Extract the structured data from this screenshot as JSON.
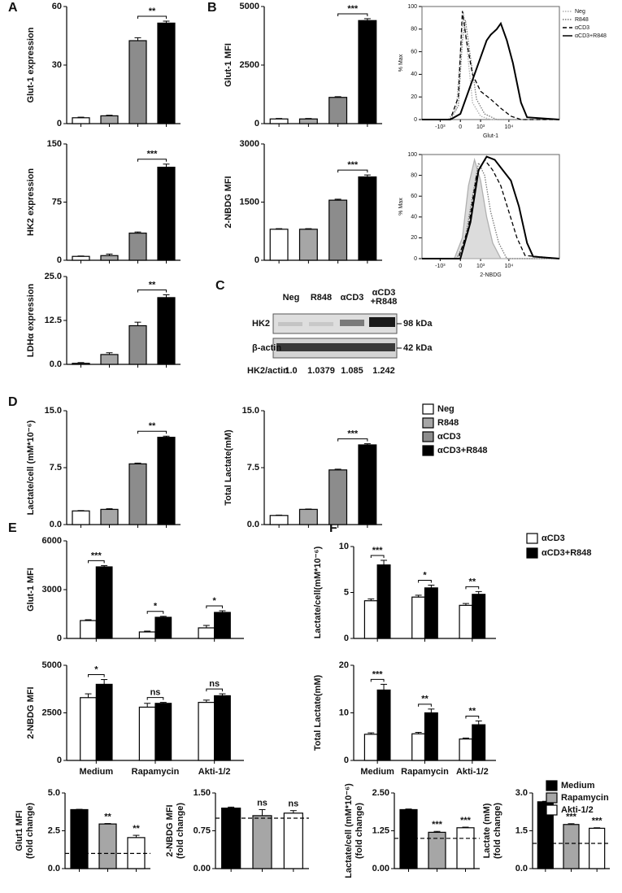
{
  "panel_labels": [
    "A",
    "B",
    "C",
    "D",
    "E",
    "F"
  ],
  "blot": {
    "lanes": [
      [
        "Neg"
      ],
      [
        "R848"
      ],
      [
        "αCD3"
      ],
      [
        "αCD3",
        "+R848"
      ]
    ],
    "rows": [
      {
        "label": "HK2",
        "size": "98 kDa"
      },
      {
        "label": "β-actin",
        "size": "42 kDa"
      }
    ],
    "ratio_label": "HK2/actin",
    "ratios": [
      "1.0",
      "1.0379",
      "1.085",
      "1.242"
    ]
  },
  "chart_data": [
    {
      "type": "bar",
      "ylabel": "Glut-1 expression",
      "categories": [
        null,
        null,
        null,
        null
      ],
      "values": [
        3,
        4,
        42.5,
        51.5
      ],
      "errors": [
        0.3,
        0.3,
        1.5,
        1
      ],
      "bar_colors": [
        "#ffffff",
        "#a6a6a6",
        "#8c8c8c",
        "#000000"
      ],
      "ylim": [
        0,
        60
      ],
      "yticks": [
        0,
        30,
        60
      ],
      "significance": {
        "label": "**",
        "bars": [
          2,
          3
        ]
      }
    },
    {
      "type": "bar",
      "ylabel": "HK2 expression",
      "categories": [
        null,
        null,
        null,
        null
      ],
      "values": [
        5,
        6,
        35,
        120
      ],
      "errors": [
        0.5,
        2,
        1.5,
        4
      ],
      "bar_colors": [
        "#ffffff",
        "#a6a6a6",
        "#8c8c8c",
        "#000000"
      ],
      "ylim": [
        0,
        150
      ],
      "yticks": [
        0,
        75,
        150
      ],
      "significance": {
        "label": "***",
        "bars": [
          2,
          3
        ]
      }
    },
    {
      "type": "bar",
      "ylabel": "LDHα expression",
      "categories": [
        null,
        null,
        null,
        null
      ],
      "values": [
        0.3,
        2.8,
        11,
        19
      ],
      "errors": [
        0.2,
        0.5,
        1,
        0.8
      ],
      "bar_colors": [
        "#ffffff",
        "#a6a6a6",
        "#8c8c8c",
        "#000000"
      ],
      "ylim": [
        0,
        25
      ],
      "yticks": [
        {
          "value": 0,
          "label": "0.0"
        },
        12.5,
        {
          "value": 25,
          "label": "25.0"
        }
      ],
      "significance": {
        "label": "**",
        "bars": [
          2,
          3
        ]
      }
    },
    {
      "type": "bar",
      "ylabel": "Glut-1 MFI",
      "categories": [
        null,
        null,
        null,
        null
      ],
      "values": [
        200,
        200,
        1120,
        4400
      ],
      "errors": [
        20,
        20,
        30,
        80
      ],
      "bar_colors": [
        "#ffffff",
        "#a6a6a6",
        "#8c8c8c",
        "#000000"
      ],
      "ylim": [
        0,
        5000
      ],
      "yticks": [
        0,
        2500,
        5000
      ],
      "significance": {
        "label": "***",
        "bars": [
          2,
          3
        ]
      }
    },
    {
      "type": "bar",
      "ylabel": "2-NBDG MFI",
      "categories": [
        null,
        null,
        null,
        null
      ],
      "values": [
        800,
        800,
        1550,
        2150
      ],
      "errors": [
        15,
        15,
        25,
        50
      ],
      "bar_colors": [
        "#ffffff",
        "#a6a6a6",
        "#8c8c8c",
        "#000000"
      ],
      "ylim": [
        0,
        3000
      ],
      "yticks": [
        0,
        1500,
        3000
      ],
      "significance": {
        "label": "***",
        "bars": [
          2,
          3
        ]
      }
    },
    {
      "type": "line",
      "xlabel": "Glut-1",
      "ylabel": "% Max",
      "xlim": [
        -1.9,
        4.9
      ],
      "ylim": [
        0,
        100
      ],
      "yticks": [
        0,
        20,
        40,
        60,
        80,
        100
      ],
      "xticks": [
        {
          "value": -1,
          "label": "-10³"
        },
        0,
        {
          "value": 1,
          "label": "10³"
        },
        {
          "value": 2.4,
          "label": "10⁴"
        }
      ],
      "legend": "top-right",
      "series": [
        {
          "name": "Neg",
          "color": "#b0b0b0",
          "style": "dotted",
          "x": [
            -1.9,
            -0.6,
            -0.2,
            0,
            0.15,
            0.35,
            0.6,
            1,
            1.5,
            4.9
          ],
          "y": [
            0,
            0,
            10,
            60,
            95,
            60,
            15,
            3,
            0,
            0
          ]
        },
        {
          "name": "R848",
          "color": "#777777",
          "style": "dotted",
          "x": [
            -1.9,
            -0.5,
            -0.1,
            0.1,
            0.25,
            0.5,
            0.8,
            1.2,
            1.8,
            4.9
          ],
          "y": [
            0,
            0,
            12,
            70,
            88,
            55,
            18,
            5,
            0,
            0
          ]
        },
        {
          "name": "αCD3",
          "color": "#000000",
          "style": "dashed",
          "x": [
            -1.9,
            -0.5,
            -0.1,
            0.1,
            0.3,
            0.6,
            1,
            1.5,
            2,
            2.5,
            3,
            4.9
          ],
          "y": [
            0,
            0,
            20,
            96,
            70,
            40,
            25,
            18,
            10,
            3,
            0,
            0
          ]
        },
        {
          "name": "αCD3+R848",
          "color": "#000000",
          "style": "solid",
          "x": [
            -1.9,
            -0.5,
            0,
            0.5,
            1,
            1.3,
            1.5,
            1.8,
            2,
            2.3,
            2.6,
            3,
            3.3,
            4.9
          ],
          "y": [
            0,
            0,
            5,
            30,
            55,
            70,
            75,
            80,
            85,
            70,
            50,
            15,
            2,
            0
          ]
        }
      ]
    },
    {
      "type": "line",
      "xlabel": "2-NBDG",
      "ylabel": "% Max",
      "xlim": [
        -1.9,
        4.9
      ],
      "ylim": [
        0,
        100
      ],
      "yticks": [
        0,
        20,
        40,
        60,
        80,
        100
      ],
      "xticks": [
        {
          "value": -1,
          "label": "-10³"
        },
        0,
        {
          "value": 1,
          "label": "10³"
        },
        {
          "value": 2.4,
          "label": "10⁴"
        }
      ],
      "series": [
        {
          "color": "#b0b0b0",
          "fill": "#dcdcdc",
          "style": "solid",
          "x": [
            -1.9,
            -0.3,
            0.1,
            0.4,
            0.7,
            1,
            1.3,
            1.6,
            2,
            4.9
          ],
          "y": [
            0,
            0,
            20,
            70,
            95,
            75,
            40,
            15,
            0,
            0
          ]
        },
        {
          "color": "#777777",
          "style": "dotted",
          "x": [
            -1.9,
            -0.2,
            0.2,
            0.6,
            0.9,
            1.2,
            1.5,
            1.9,
            2.3,
            4.9
          ],
          "y": [
            0,
            0,
            15,
            60,
            92,
            80,
            45,
            15,
            0,
            0
          ]
        },
        {
          "color": "#000000",
          "style": "dashed",
          "x": [
            -1.9,
            -0.1,
            0.4,
            0.8,
            1.2,
            1.6,
            2,
            2.4,
            2.8,
            3.2,
            4.9
          ],
          "y": [
            0,
            0,
            30,
            80,
            95,
            85,
            70,
            45,
            20,
            3,
            0
          ]
        },
        {
          "color": "#000000",
          "style": "solid",
          "x": [
            -1.9,
            0,
            0.5,
            0.9,
            1.3,
            1.7,
            2.1,
            2.5,
            2.9,
            3.3,
            3.6,
            4.9
          ],
          "y": [
            0,
            0,
            35,
            85,
            98,
            95,
            85,
            75,
            50,
            15,
            2,
            0
          ]
        }
      ]
    },
    {
      "type": "bar",
      "ylabel": "Lactate/cell (mM*10⁻⁶)",
      "categories": [
        null,
        null,
        null,
        null
      ],
      "values": [
        1.8,
        2.0,
        8.0,
        11.5
      ],
      "errors": [
        0.05,
        0.1,
        0.1,
        0.15
      ],
      "bar_colors": [
        "#ffffff",
        "#a6a6a6",
        "#8c8c8c",
        "#000000"
      ],
      "ylim": [
        0,
        15
      ],
      "yticks": [
        {
          "value": 0,
          "label": "0.0"
        },
        7.5,
        {
          "value": 15,
          "label": "15.0"
        }
      ],
      "significance": {
        "label": "**",
        "bars": [
          2,
          3
        ]
      }
    },
    {
      "type": "bar",
      "ylabel": "Total Lactate(mM)",
      "categories": [
        null,
        null,
        null,
        null
      ],
      "values": [
        1.2,
        2.0,
        7.2,
        10.5
      ],
      "errors": [
        0.05,
        0.05,
        0.1,
        0.15
      ],
      "bar_colors": [
        "#ffffff",
        "#a6a6a6",
        "#8c8c8c",
        "#000000"
      ],
      "ylim": [
        0,
        15
      ],
      "yticks": [
        {
          "value": 0,
          "label": "0.0"
        },
        7.5,
        {
          "value": 15,
          "label": "15.0"
        }
      ],
      "significance": {
        "label": "***",
        "bars": [
          2,
          3
        ]
      },
      "legend": {
        "position": "right",
        "entries": [
          {
            "name": "Neg",
            "color": "#ffffff"
          },
          {
            "name": "R848",
            "color": "#a6a6a6"
          },
          {
            "name": "αCD3",
            "color": "#8c8c8c"
          },
          {
            "name": "αCD3+R848",
            "color": "#000000"
          }
        ]
      }
    },
    {
      "type": "grouped_bar",
      "ylabel": "Glut-1 MFI",
      "categories": [
        null,
        null,
        null
      ],
      "ylim": [
        0,
        6000
      ],
      "yticks": [
        0,
        3000,
        6000
      ],
      "significance": [
        "***",
        "*",
        "*"
      ],
      "series": [
        {
          "color": "#ffffff",
          "values": [
            1100,
            400,
            650
          ],
          "errors": [
            50,
            50,
            150
          ]
        },
        {
          "color": "#000000",
          "values": [
            4400,
            1300,
            1600
          ],
          "errors": [
            80,
            60,
            100
          ]
        }
      ]
    },
    {
      "type": "grouped_bar",
      "ylabel": "2-NBDG MFI",
      "categories": [
        "Medium",
        "Rapamycin",
        "Akti-1/2"
      ],
      "ylim": [
        0,
        5000
      ],
      "yticks": [
        0,
        2500,
        5000
      ],
      "significance": [
        "*",
        "ns",
        "ns"
      ],
      "series": [
        {
          "color": "#ffffff",
          "values": [
            3300,
            2800,
            3050
          ],
          "errors": [
            200,
            200,
            120
          ]
        },
        {
          "color": "#000000",
          "values": [
            4000,
            3000,
            3400
          ],
          "errors": [
            250,
            50,
            100
          ]
        }
      ]
    },
    {
      "type": "grouped_bar",
      "ylabel": "Lactate/cell(mM*10⁻⁶)",
      "categories": [
        null,
        null,
        null
      ],
      "ylim": [
        0,
        10
      ],
      "yticks": [
        0,
        5,
        10
      ],
      "significance": [
        "***",
        "*",
        "**"
      ],
      "legend": "right",
      "series": [
        {
          "name": "αCD3",
          "color": "#ffffff",
          "values": [
            4.1,
            4.5,
            3.6
          ],
          "errors": [
            0.2,
            0.2,
            0.2
          ]
        },
        {
          "name": "αCD3+R848",
          "color": "#000000",
          "values": [
            8.0,
            5.5,
            4.8
          ],
          "errors": [
            0.5,
            0.3,
            0.3
          ]
        }
      ]
    },
    {
      "type": "grouped_bar",
      "ylabel": "Total Lactate(mM)",
      "categories": [
        "Medium",
        "Rapamycin",
        "Akti-1/2"
      ],
      "ylim": [
        0,
        20
      ],
      "yticks": [
        0,
        10,
        20
      ],
      "significance": [
        "***",
        "**",
        "**"
      ],
      "series": [
        {
          "color": "#ffffff",
          "values": [
            5.5,
            5.6,
            4.5
          ],
          "errors": [
            0.3,
            0.3,
            0.2
          ]
        },
        {
          "color": "#000000",
          "values": [
            14.8,
            10,
            7.5
          ],
          "errors": [
            1.2,
            0.8,
            0.8
          ]
        }
      ]
    },
    {
      "type": "bar",
      "ylabel": [
        "Glut1 MFI",
        "(fold change)"
      ],
      "categories": [
        null,
        null,
        null
      ],
      "values": [
        3.9,
        2.95,
        2.05
      ],
      "errors": [
        0.02,
        0.03,
        0.15
      ],
      "bar_colors": [
        "#000000",
        "#a6a6a6",
        "#ffffff"
      ],
      "ylim": [
        0,
        5
      ],
      "yticks": [
        {
          "value": 0,
          "label": "0.0"
        },
        2.5,
        {
          "value": 5,
          "label": "5.0"
        }
      ],
      "reference_line": 1,
      "significance": [
        null,
        "**",
        "**"
      ]
    },
    {
      "type": "bar",
      "ylabel": [
        "2-NBDG MFI",
        "(fold change)"
      ],
      "categories": [
        null,
        null,
        null
      ],
      "values": [
        1.2,
        1.05,
        1.1
      ],
      "errors": [
        0.02,
        0.12,
        0.05
      ],
      "bar_colors": [
        "#000000",
        "#a6a6a6",
        "#ffffff"
      ],
      "ylim": [
        0,
        1.5
      ],
      "yticks": [
        {
          "value": 0,
          "label": "0.00"
        },
        0.75,
        {
          "value": 1.5,
          "label": "1.50"
        }
      ],
      "reference_line": 1,
      "significance": [
        null,
        "ns",
        "ns"
      ]
    },
    {
      "type": "bar",
      "ylabel": [
        "Lactate/cell (mM*10⁻⁶)",
        "(fold change)"
      ],
      "categories": [
        null,
        null,
        null
      ],
      "values": [
        1.95,
        1.2,
        1.35
      ],
      "errors": [
        0.02,
        0.03,
        0.02
      ],
      "bar_colors": [
        "#000000",
        "#a6a6a6",
        "#ffffff"
      ],
      "ylim": [
        0,
        2.5
      ],
      "yticks": [
        {
          "value": 0,
          "label": "0.00"
        },
        1.25,
        {
          "value": 2.5,
          "label": "2.50"
        }
      ],
      "reference_line": 1,
      "significance": [
        null,
        "***",
        "***"
      ]
    },
    {
      "type": "bar",
      "ylabel": [
        "Lactate (mM)",
        "(fold change)"
      ],
      "categories": [
        null,
        null,
        null
      ],
      "values": [
        2.65,
        1.75,
        1.6
      ],
      "errors": [
        0.02,
        0.03,
        0.02
      ],
      "bar_colors": [
        "#000000",
        "#a6a6a6",
        "#ffffff"
      ],
      "ylim": [
        0,
        3
      ],
      "yticks": [
        {
          "value": 0,
          "label": "0.0"
        },
        1.5,
        {
          "value": 3,
          "label": "3.0"
        }
      ],
      "reference_line": 1,
      "significance": [
        null,
        "***",
        "***"
      ],
      "legend": {
        "position": "right",
        "entries": [
          {
            "name": "Medium",
            "color": "#000000"
          },
          {
            "name": "Rapamycin",
            "color": "#a6a6a6"
          },
          {
            "name": "Akti-1/2",
            "color": "#ffffff"
          }
        ]
      }
    }
  ]
}
